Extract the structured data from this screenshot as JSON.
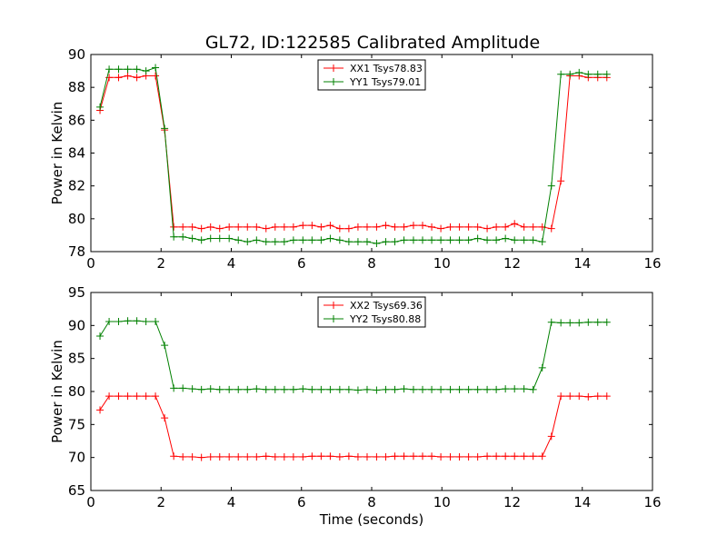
{
  "title": "GL72, ID:122585 Calibrated Amplitude",
  "colors": {
    "red": "#ff0000",
    "green": "#008000"
  },
  "chart_data": [
    {
      "type": "line",
      "ylabel": "Power in Kelvin",
      "xlabel": "",
      "xlim": [
        0,
        16
      ],
      "ylim": [
        78,
        90
      ],
      "xticks": [
        "0",
        "2",
        "4",
        "6",
        "8",
        "10",
        "12",
        "14",
        "16"
      ],
      "yticks": [
        "78",
        "80",
        "82",
        "84",
        "86",
        "88",
        "90"
      ],
      "legend_position": "top-center",
      "x": [
        0.26,
        0.52,
        0.79,
        1.05,
        1.31,
        1.57,
        1.84,
        2.1,
        2.36,
        2.62,
        2.89,
        3.15,
        3.41,
        3.67,
        3.94,
        4.2,
        4.46,
        4.72,
        4.99,
        5.25,
        5.51,
        5.77,
        6.04,
        6.3,
        6.56,
        6.82,
        7.09,
        7.35,
        7.61,
        7.87,
        8.14,
        8.4,
        8.66,
        8.92,
        9.19,
        9.45,
        9.71,
        9.97,
        10.24,
        10.5,
        10.76,
        11.02,
        11.29,
        11.55,
        11.81,
        12.07,
        12.34,
        12.6,
        12.86,
        13.12,
        13.39,
        13.65,
        13.91,
        14.17,
        14.44,
        14.7
      ],
      "series": [
        {
          "name": "XX1 Tsys78.83",
          "color": "#ff0000",
          "values": [
            86.6,
            88.6,
            88.6,
            88.7,
            88.6,
            88.7,
            88.7,
            85.4,
            79.5,
            79.5,
            79.5,
            79.4,
            79.5,
            79.4,
            79.5,
            79.5,
            79.5,
            79.5,
            79.4,
            79.5,
            79.5,
            79.5,
            79.6,
            79.6,
            79.5,
            79.6,
            79.4,
            79.4,
            79.5,
            79.5,
            79.5,
            79.6,
            79.5,
            79.5,
            79.6,
            79.6,
            79.5,
            79.4,
            79.5,
            79.5,
            79.5,
            79.5,
            79.4,
            79.5,
            79.5,
            79.7,
            79.5,
            79.5,
            79.5,
            79.4,
            82.3,
            88.7,
            88.7,
            88.6,
            88.6,
            88.6
          ]
        },
        {
          "name": "YY1 Tsys79.01",
          "color": "#008000",
          "values": [
            86.8,
            89.1,
            89.1,
            89.1,
            89.1,
            89.0,
            89.2,
            85.5,
            78.9,
            78.9,
            78.8,
            78.7,
            78.8,
            78.8,
            78.8,
            78.7,
            78.6,
            78.7,
            78.6,
            78.6,
            78.6,
            78.7,
            78.7,
            78.7,
            78.7,
            78.8,
            78.7,
            78.6,
            78.6,
            78.6,
            78.5,
            78.6,
            78.6,
            78.7,
            78.7,
            78.7,
            78.7,
            78.7,
            78.7,
            78.7,
            78.7,
            78.8,
            78.7,
            78.7,
            78.8,
            78.7,
            78.7,
            78.7,
            78.6,
            82.0,
            88.8,
            88.8,
            88.9,
            88.8,
            88.8,
            88.8
          ]
        }
      ]
    },
    {
      "type": "line",
      "ylabel": "Power in Kelvin",
      "xlabel": "Time (seconds)",
      "xlim": [
        0,
        16
      ],
      "ylim": [
        65,
        95
      ],
      "xticks": [
        "0",
        "2",
        "4",
        "6",
        "8",
        "10",
        "12",
        "14",
        "16"
      ],
      "yticks": [
        "65",
        "70",
        "75",
        "80",
        "85",
        "90",
        "95"
      ],
      "legend_position": "top-center",
      "x": [
        0.26,
        0.52,
        0.79,
        1.05,
        1.31,
        1.57,
        1.84,
        2.1,
        2.36,
        2.62,
        2.89,
        3.15,
        3.41,
        3.67,
        3.94,
        4.2,
        4.46,
        4.72,
        4.99,
        5.25,
        5.51,
        5.77,
        6.04,
        6.3,
        6.56,
        6.82,
        7.09,
        7.35,
        7.61,
        7.87,
        8.14,
        8.4,
        8.66,
        8.92,
        9.19,
        9.45,
        9.71,
        9.97,
        10.24,
        10.5,
        10.76,
        11.02,
        11.29,
        11.55,
        11.81,
        12.07,
        12.34,
        12.6,
        12.86,
        13.12,
        13.39,
        13.65,
        13.91,
        14.17,
        14.44,
        14.7
      ],
      "series": [
        {
          "name": "XX2 Tsys69.36",
          "color": "#ff0000",
          "values": [
            77.2,
            79.3,
            79.3,
            79.3,
            79.3,
            79.3,
            79.3,
            76.0,
            70.2,
            70.1,
            70.1,
            70.0,
            70.1,
            70.1,
            70.1,
            70.1,
            70.1,
            70.1,
            70.2,
            70.1,
            70.1,
            70.1,
            70.1,
            70.2,
            70.2,
            70.2,
            70.1,
            70.2,
            70.1,
            70.1,
            70.1,
            70.1,
            70.2,
            70.2,
            70.2,
            70.2,
            70.2,
            70.1,
            70.1,
            70.1,
            70.1,
            70.1,
            70.2,
            70.2,
            70.2,
            70.2,
            70.2,
            70.2,
            70.2,
            73.2,
            79.3,
            79.3,
            79.3,
            79.2,
            79.3,
            79.3
          ]
        },
        {
          "name": "YY2 Tsys80.88",
          "color": "#008000",
          "values": [
            88.4,
            90.6,
            90.6,
            90.7,
            90.7,
            90.6,
            90.6,
            87.0,
            80.5,
            80.5,
            80.4,
            80.3,
            80.4,
            80.3,
            80.3,
            80.3,
            80.3,
            80.4,
            80.3,
            80.3,
            80.3,
            80.3,
            80.4,
            80.3,
            80.3,
            80.3,
            80.3,
            80.3,
            80.2,
            80.3,
            80.2,
            80.3,
            80.3,
            80.4,
            80.3,
            80.3,
            80.3,
            80.3,
            80.3,
            80.3,
            80.3,
            80.3,
            80.3,
            80.3,
            80.4,
            80.4,
            80.4,
            80.3,
            83.6,
            90.5,
            90.4,
            90.4,
            90.4,
            90.5,
            90.5,
            90.5
          ]
        }
      ]
    }
  ]
}
